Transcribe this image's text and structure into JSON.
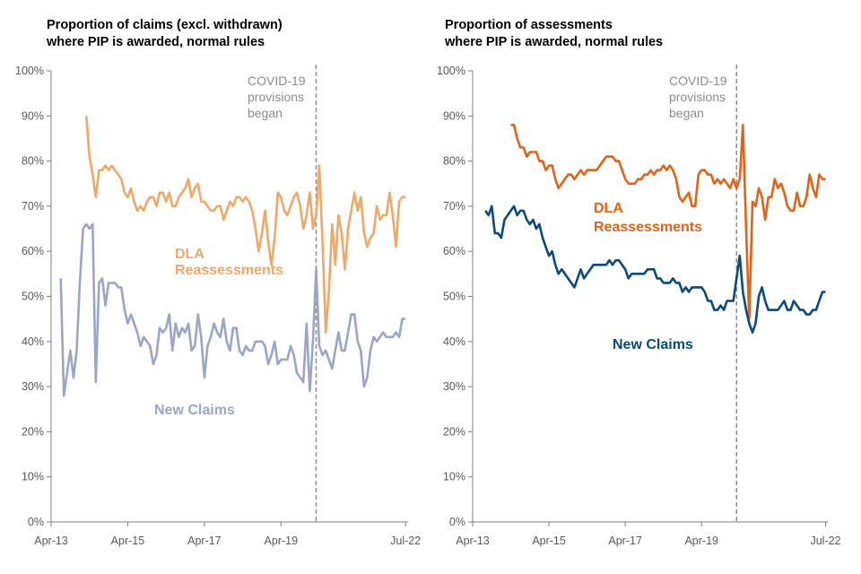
{
  "chart_data": [
    {
      "type": "line",
      "title": "Proportion of claims (excl. withdrawn) where PIP is awarded, normal rules",
      "title_lines": [
        "Proportion of claims (excl. withdrawn)",
        "where PIP is awarded, normal rules"
      ],
      "xlabel": "",
      "ylabel": "",
      "ylim": [
        0,
        100
      ],
      "y_ticks": [
        "0%",
        "10%",
        "20%",
        "30%",
        "40%",
        "50%",
        "60%",
        "70%",
        "80%",
        "90%",
        "100%"
      ],
      "x_ticks": [
        "Apr-13",
        "Apr-15",
        "Apr-17",
        "Apr-19",
        "Jul-22"
      ],
      "grid": false,
      "annotation": {
        "lines": [
          "COVID-19",
          "provisions",
          "began"
        ],
        "at": "Mar-20"
      },
      "x": [
        "Jul-13",
        "Aug-13",
        "Sep-13",
        "Oct-13",
        "Nov-13",
        "Dec-13",
        "Jan-14",
        "Feb-14",
        "Mar-14",
        "Apr-14",
        "May-14",
        "Jun-14",
        "Jul-14",
        "Aug-14",
        "Sep-14",
        "Oct-14",
        "Nov-14",
        "Dec-14",
        "Jan-15",
        "Feb-15",
        "Mar-15",
        "Apr-15",
        "May-15",
        "Jun-15",
        "Jul-15",
        "Aug-15",
        "Sep-15",
        "Oct-15",
        "Nov-15",
        "Dec-15",
        "Jan-16",
        "Feb-16",
        "Mar-16",
        "Apr-16",
        "May-16",
        "Jun-16",
        "Jul-16",
        "Aug-16",
        "Sep-16",
        "Oct-16",
        "Nov-16",
        "Dec-16",
        "Jan-17",
        "Feb-17",
        "Mar-17",
        "Apr-17",
        "May-17",
        "Jun-17",
        "Jul-17",
        "Aug-17",
        "Sep-17",
        "Oct-17",
        "Nov-17",
        "Dec-17",
        "Jan-18",
        "Feb-18",
        "Mar-18",
        "Apr-18",
        "May-18",
        "Jun-18",
        "Jul-18",
        "Aug-18",
        "Sep-18",
        "Oct-18",
        "Nov-18",
        "Dec-18",
        "Jan-19",
        "Feb-19",
        "Mar-19",
        "Apr-19",
        "May-19",
        "Jun-19",
        "Jul-19",
        "Aug-19",
        "Sep-19",
        "Oct-19",
        "Nov-19",
        "Dec-19",
        "Jan-20",
        "Feb-20",
        "Mar-20",
        "Apr-20",
        "May-20",
        "Jun-20",
        "Jul-20",
        "Aug-20",
        "Sep-20",
        "Oct-20",
        "Nov-20",
        "Dec-20",
        "Jan-21",
        "Feb-21",
        "Mar-21",
        "Apr-21",
        "May-21",
        "Jun-21",
        "Jul-21",
        "Aug-21",
        "Sep-21",
        "Oct-21",
        "Nov-21",
        "Dec-21",
        "Jan-22",
        "Feb-22",
        "Mar-22",
        "Apr-22",
        "May-22",
        "Jun-22",
        "Jul-22"
      ],
      "series": [
        {
          "name": "DLA Reassessments",
          "label_lines": [
            "DLA",
            "Reassessments"
          ],
          "color": "#F0A868",
          "values": [
            null,
            null,
            null,
            null,
            null,
            null,
            null,
            null,
            90,
            81,
            77,
            72,
            78,
            78,
            79,
            78,
            79,
            78,
            77,
            76,
            73,
            72,
            74,
            71,
            69,
            70,
            69,
            71,
            72,
            72,
            70,
            73,
            73,
            71,
            73,
            70,
            70,
            72,
            73,
            74,
            76,
            72,
            74,
            75,
            71,
            71,
            70,
            69,
            69,
            70,
            70,
            67,
            69,
            71,
            70,
            72,
            72,
            71,
            72,
            71,
            69,
            65,
            60,
            64,
            69,
            62,
            57,
            63,
            73,
            72,
            69,
            68,
            70,
            72,
            73,
            70,
            65,
            68,
            73,
            65,
            68,
            79,
            62,
            42,
            51,
            66,
            57,
            68,
            64,
            56,
            65,
            69,
            73,
            69,
            72,
            64,
            61,
            63,
            64,
            70,
            67,
            68,
            68,
            73,
            68,
            61,
            71,
            72,
            72
          ]
        },
        {
          "name": "New Claims",
          "label_lines": [
            "New Claims"
          ],
          "color": "#9AA6C8",
          "values": [
            54,
            28,
            33,
            38,
            32,
            38,
            53,
            65,
            66,
            65,
            66,
            31,
            53,
            54,
            48,
            53,
            53,
            53,
            52,
            52,
            47,
            44,
            46,
            44,
            42,
            39,
            41,
            40,
            39,
            35,
            37,
            43,
            42,
            43,
            46,
            38,
            44,
            41,
            43,
            42,
            44,
            38,
            39,
            46,
            41,
            32,
            39,
            41,
            44,
            42,
            41,
            45,
            40,
            38,
            43,
            43,
            38,
            37,
            39,
            38,
            38,
            40,
            40,
            40,
            39,
            35,
            37,
            40,
            35,
            36,
            36,
            36,
            39,
            37,
            33,
            32,
            31,
            44,
            29,
            40,
            56,
            39,
            37,
            38,
            36,
            34,
            38,
            42,
            38,
            38,
            42,
            46,
            46,
            40,
            38,
            30,
            32,
            38,
            41,
            40,
            41,
            42,
            41,
            41,
            41,
            42,
            41,
            45,
            45
          ]
        }
      ]
    },
    {
      "type": "line",
      "title": "Proportion of assessments where PIP is awarded, normal rules",
      "title_lines": [
        "Proportion of assessments",
        "where PIP is awarded, normal rules"
      ],
      "xlabel": "",
      "ylabel": "",
      "ylim": [
        0,
        100
      ],
      "y_ticks": [
        "0%",
        "10%",
        "20%",
        "30%",
        "40%",
        "50%",
        "60%",
        "70%",
        "80%",
        "90%",
        "100%"
      ],
      "x_ticks": [
        "Apr-13",
        "Apr-15",
        "Apr-17",
        "Apr-19",
        "Jul-22"
      ],
      "grid": false,
      "annotation": {
        "lines": [
          "COVID-19",
          "provisions",
          "began"
        ],
        "at": "Mar-20"
      },
      "series": [
        {
          "name": "DLA Reassessments",
          "label_lines": [
            "DLA",
            "Reassessments"
          ],
          "color": "#E0631A",
          "values": [
            null,
            null,
            null,
            null,
            null,
            null,
            null,
            null,
            null,
            88,
            88,
            85,
            83,
            83,
            81,
            82,
            82,
            82,
            80,
            80,
            78,
            79,
            79,
            76,
            74,
            75,
            76,
            77,
            77,
            76,
            77,
            78,
            77,
            78,
            78,
            78,
            78,
            79,
            80,
            81,
            81,
            81,
            80,
            80,
            78,
            76,
            75,
            75,
            75,
            76,
            76,
            77,
            77,
            78,
            77,
            78,
            78,
            79,
            78,
            79,
            78,
            76,
            72,
            71,
            72,
            73,
            70,
            70,
            77,
            78,
            78,
            77,
            77,
            75,
            76,
            75,
            76,
            75,
            74,
            76,
            74,
            76,
            88,
            65,
            45,
            71,
            70,
            74,
            72,
            67,
            72,
            72,
            76,
            74,
            75,
            73,
            70,
            69,
            69,
            73,
            70,
            70,
            72,
            77,
            74,
            72,
            77,
            76,
            76
          ]
        },
        {
          "name": "New Claims",
          "label_lines": [
            "New Claims"
          ],
          "color": "#0B4A7D",
          "values": [
            null,
            69,
            68,
            70,
            64,
            64,
            63,
            67,
            68,
            69,
            70,
            68,
            69,
            69,
            67,
            66,
            67,
            65,
            66,
            63,
            61,
            59,
            60,
            57,
            55,
            56,
            55,
            54,
            53,
            52,
            54,
            56,
            54,
            55,
            56,
            57,
            57,
            57,
            57,
            57,
            58,
            57,
            58,
            58,
            57,
            56,
            54,
            55,
            55,
            55,
            55,
            55,
            56,
            56,
            56,
            54,
            54,
            53,
            53,
            53,
            54,
            53,
            53,
            51,
            52,
            51,
            52,
            52,
            52,
            52,
            51,
            49,
            49,
            47,
            47,
            48,
            47,
            49,
            49,
            49,
            54,
            59,
            51,
            47,
            44,
            42,
            44,
            50,
            52,
            49,
            47,
            47,
            47,
            47,
            48,
            49,
            47,
            47,
            49,
            48,
            47,
            47,
            46,
            46,
            47,
            47,
            49,
            51,
            51
          ]
        }
      ]
    }
  ]
}
